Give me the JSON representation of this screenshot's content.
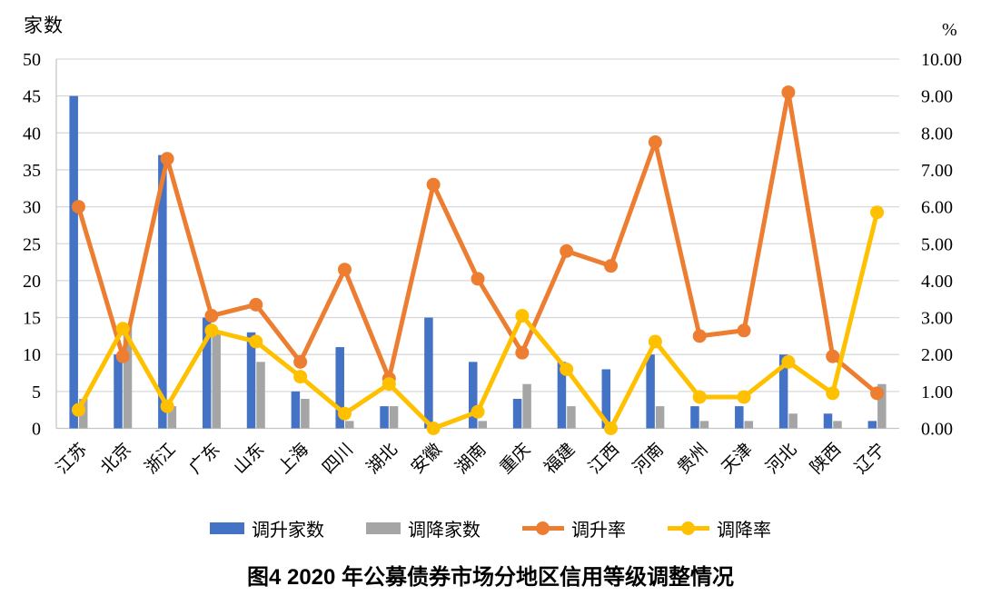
{
  "axes": {
    "left_unit": "家数",
    "right_unit": "%"
  },
  "title": "图4  2020 年公募债券市场分地区信用等级调整情况",
  "chart_data": {
    "type": "combo-bar-line",
    "categories": [
      "江苏",
      "北京",
      "浙江",
      "广东",
      "山东",
      "上海",
      "四川",
      "湖北",
      "安徽",
      "湖南",
      "重庆",
      "福建",
      "江西",
      "河南",
      "贵州",
      "天津",
      "河北",
      "陕西",
      "辽宁"
    ],
    "series": [
      {
        "name": "调升家数",
        "type": "bar",
        "axis": "left",
        "color": "#4472C4",
        "values": [
          45,
          10,
          37,
          15,
          13,
          5,
          11,
          3,
          15,
          9,
          4,
          9,
          8,
          10,
          3,
          3,
          10,
          2,
          1
        ]
      },
      {
        "name": "调降家数",
        "type": "bar",
        "axis": "left",
        "color": "#A5A5A5",
        "values": [
          4,
          14,
          3,
          13,
          9,
          4,
          1,
          3,
          0,
          1,
          6,
          3,
          0,
          3,
          1,
          1,
          2,
          1,
          6
        ]
      },
      {
        "name": "调升率",
        "type": "line",
        "axis": "right",
        "color": "#ED7D31",
        "values": [
          6.0,
          1.95,
          7.3,
          3.05,
          3.35,
          1.8,
          4.3,
          1.35,
          6.6,
          4.05,
          2.05,
          4.8,
          4.4,
          7.75,
          2.5,
          2.65,
          9.1,
          1.95,
          0.95
        ]
      },
      {
        "name": "调降率",
        "type": "line",
        "axis": "right",
        "color": "#FFC000",
        "values": [
          0.5,
          2.7,
          0.6,
          2.65,
          2.35,
          1.4,
          0.4,
          1.2,
          0.0,
          0.45,
          3.05,
          1.6,
          0.0,
          2.35,
          0.85,
          0.85,
          1.8,
          0.95,
          5.85
        ]
      }
    ],
    "left_axis": {
      "unit": "家数",
      "min": 0,
      "max": 50,
      "step": 5
    },
    "right_axis": {
      "unit": "%",
      "min": 0,
      "max": 10,
      "step": 1,
      "decimals": 2
    },
    "grid": true,
    "legend_position": "bottom",
    "colors": {
      "gridline": "#D9D9D9",
      "axisline": "#C6C6C6",
      "text": "#000000"
    }
  }
}
